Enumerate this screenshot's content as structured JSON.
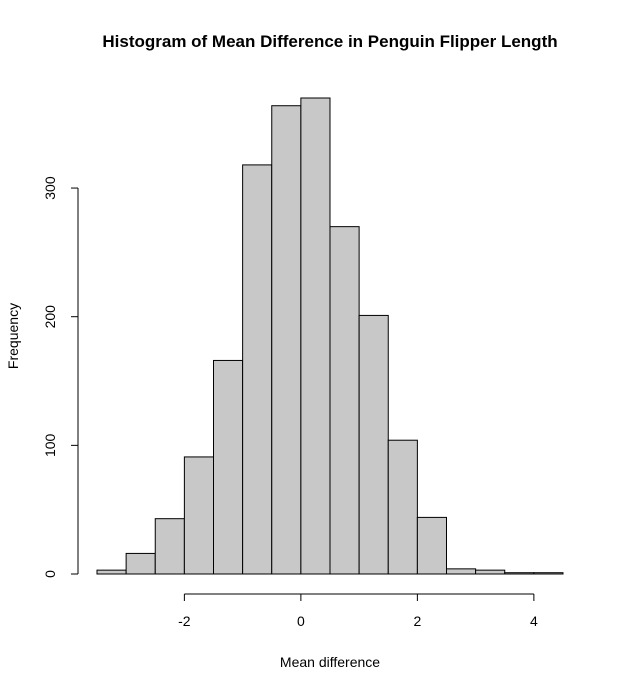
{
  "chart_data": {
    "type": "bar",
    "title": "Histogram of Mean Difference in Penguin Flipper Length",
    "xlabel": "Mean difference",
    "ylabel": "Frequency",
    "bin_edges": [
      -3.5,
      -3.0,
      -2.5,
      -2.0,
      -1.5,
      -1.0,
      -0.5,
      0.0,
      0.5,
      1.0,
      1.5,
      2.0,
      2.5,
      3.0,
      3.5,
      4.0,
      4.5
    ],
    "values": [
      3,
      16,
      43,
      91,
      166,
      318,
      364,
      370,
      270,
      201,
      104,
      44,
      4,
      3,
      1,
      1
    ],
    "xlim": [
      -3.5,
      4.5
    ],
    "ylim": [
      0,
      370
    ],
    "x_ticks": [
      -2,
      0,
      2,
      4
    ],
    "x_tick_labels": [
      "-2",
      "0",
      "2",
      "4"
    ],
    "y_ticks": [
      0,
      100,
      200,
      300
    ],
    "y_tick_labels": [
      "0",
      "100",
      "200",
      "300"
    ],
    "bar_fill": "#c8c8c8",
    "bar_stroke": "#000000",
    "grid": false,
    "legend": "none"
  }
}
